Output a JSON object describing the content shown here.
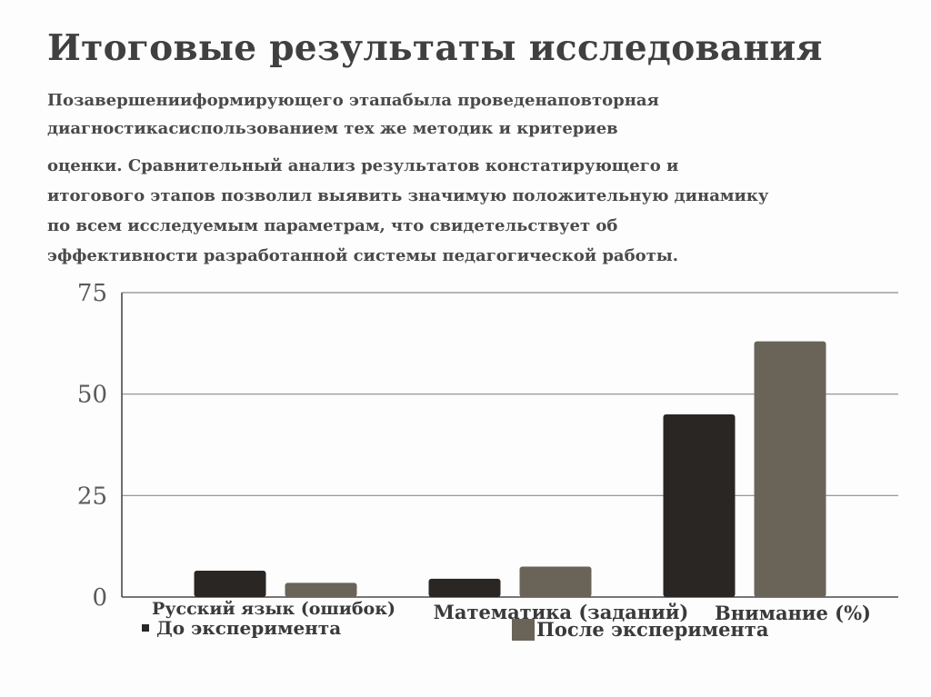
{
  "slide": {
    "title": "Итоговые результаты исследования",
    "paragraph1": [
      "Позавершенииформирующего этапабыла проведенаповторная",
      "диагностикасиспользованием тех же методик и критериев"
    ],
    "paragraph2": [
      "оценки. Сравнительный анализ результатов констатирующего и",
      "итогового этапов позволил выявить значимую положительную динамику",
      "по всем исследуемым параметрам, что свидетельствует об",
      "эффективности разработанной системы педагогической работы."
    ]
  },
  "chart_data": {
    "type": "bar",
    "categories": [
      "Русский язык (ошибок)",
      "Математика (заданий)",
      "Внимание (%)"
    ],
    "series": [
      {
        "name": "До эксперимента",
        "values": [
          6.5,
          4.5,
          45
        ],
        "color": "#2a2624"
      },
      {
        "name": "После эксперимента",
        "values": [
          3.5,
          7.5,
          63
        ],
        "color": "#6a6358"
      }
    ],
    "y_ticks": [
      0,
      25,
      50,
      75
    ],
    "ylim": [
      0,
      75
    ],
    "grid": true,
    "legend_position": "bottom"
  }
}
